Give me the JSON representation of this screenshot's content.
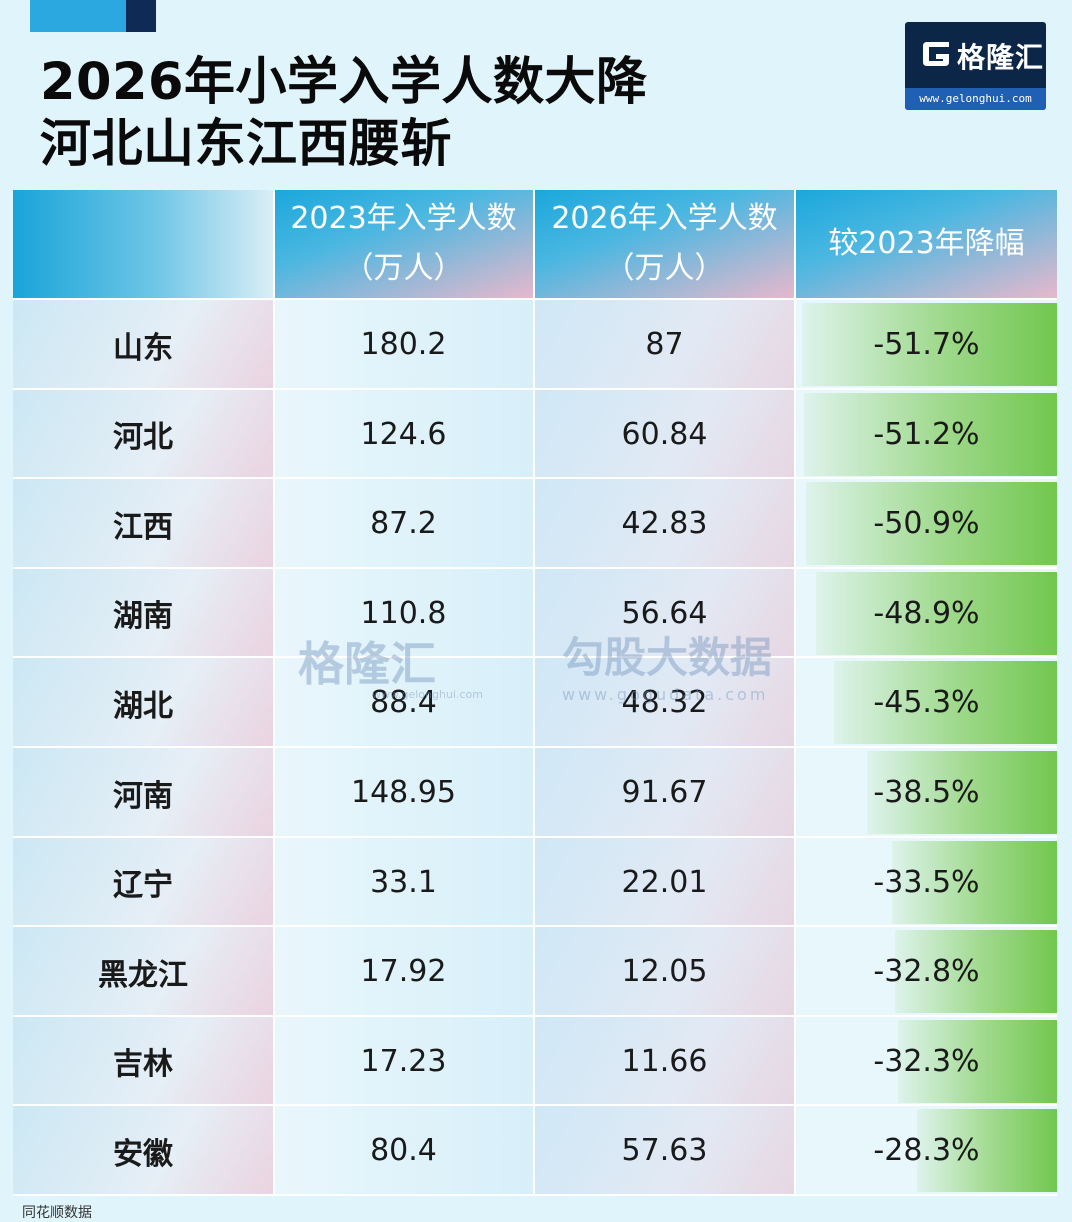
{
  "header": {
    "title_line1": "2026年小学入学人数大降",
    "title_line2": "河北山东江西腰斩"
  },
  "logo": {
    "brand": "格隆汇",
    "url": "www.gelonghui.com"
  },
  "watermark": {
    "gelonghui": "格隆汇",
    "gelonghui_url": "www.gelonghui.com",
    "gogudata": "勾股大数据",
    "gogudata_url": "www.gogudata.com"
  },
  "table": {
    "headers": [
      {
        "line1": "",
        "line2": ""
      },
      {
        "line1": "2023年入学人数",
        "line2": "（万人）"
      },
      {
        "line1": "2026年入学人数",
        "line2": "（万人）"
      },
      {
        "line1": "较2023年降幅",
        "line2": ""
      }
    ]
  },
  "chart_data": {
    "type": "table",
    "title": "2026年小学入学人数大降 河北山东江西腰斩",
    "columns": [
      "",
      "2023年入学人数（万人）",
      "2026年入学人数（万人）",
      "较2023年降幅"
    ],
    "rows": [
      {
        "province": "山东",
        "y2023": "180.2",
        "y2026": "87",
        "decline": "-51.7%",
        "decline_value": 51.7
      },
      {
        "province": "河北",
        "y2023": "124.6",
        "y2026": "60.84",
        "decline": "-51.2%",
        "decline_value": 51.2
      },
      {
        "province": "江西",
        "y2023": "87.2",
        "y2026": "42.83",
        "decline": "-50.9%",
        "decline_value": 50.9
      },
      {
        "province": "湖南",
        "y2023": "110.8",
        "y2026": "56.64",
        "decline": "-48.9%",
        "decline_value": 48.9
      },
      {
        "province": "湖北",
        "y2023": "88.4",
        "y2026": "48.32",
        "decline": "-45.3%",
        "decline_value": 45.3
      },
      {
        "province": "河南",
        "y2023": "148.95",
        "y2026": "91.67",
        "decline": "-38.5%",
        "decline_value": 38.5
      },
      {
        "province": "辽宁",
        "y2023": "33.1",
        "y2026": "22.01",
        "decline": "-33.5%",
        "decline_value": 33.5
      },
      {
        "province": "黑龙江",
        "y2023": "17.92",
        "y2026": "12.05",
        "decline": "-32.8%",
        "decline_value": 32.8
      },
      {
        "province": "吉林",
        "y2023": "17.23",
        "y2026": "11.66",
        "decline": "-32.3%",
        "decline_value": 32.3
      },
      {
        "province": "安徽",
        "y2023": "80.4",
        "y2026": "57.63",
        "decline": "-28.3%",
        "decline_value": 28.3
      }
    ],
    "bar_max_value": 51.7
  },
  "footer": {
    "text": "同花顺数据"
  },
  "colors": {
    "header_blue": "#19a4d9",
    "header_pink": "#e7b8cc",
    "bar_green": "#72c74f",
    "logo_navy": "#0c2648",
    "page_bg": "#dff4fb"
  }
}
